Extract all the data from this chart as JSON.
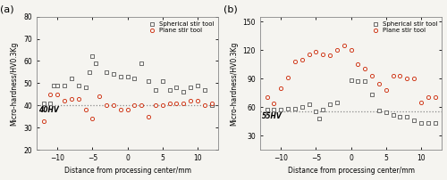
{
  "panel_a": {
    "spherical_x": [
      -12,
      -11,
      -10.5,
      -10,
      -9,
      -8,
      -7,
      -6,
      -5.5,
      -5,
      -4.5,
      -3,
      -2,
      -1,
      0,
      1,
      2,
      3,
      4,
      5,
      6,
      7,
      8,
      9,
      10,
      11,
      12
    ],
    "spherical_y": [
      41,
      41,
      49,
      49,
      49,
      52,
      49,
      48,
      55,
      62,
      59,
      55,
      54,
      53,
      53,
      52,
      59,
      51,
      47,
      51,
      47,
      48,
      46,
      48,
      49,
      47,
      40
    ],
    "plane_x": [
      -12,
      -11,
      -10,
      -9,
      -8,
      -7,
      -6,
      -5,
      -4,
      -3,
      -2,
      -1,
      0,
      1,
      2,
      3,
      4,
      5,
      6,
      7,
      8,
      9,
      10,
      11,
      12
    ],
    "plane_y": [
      33,
      45,
      45,
      42,
      43,
      43,
      38,
      34,
      44,
      40,
      40,
      38,
      38,
      40,
      40,
      35,
      40,
      40,
      41,
      41,
      41,
      42,
      42,
      40,
      41
    ],
    "hline": 40,
    "hline_label": "40HV",
    "ylabel": "Micro-hardness/HV0.3Kg",
    "xlabel": "Distance from processing center/mm",
    "ylim": [
      20,
      80
    ],
    "xlim": [
      -13,
      13
    ],
    "yticks": [
      20,
      30,
      40,
      50,
      60,
      70,
      80
    ],
    "xticks": [
      -10,
      -5,
      0,
      5,
      10
    ],
    "label": "(a)"
  },
  "panel_b": {
    "spherical_x": [
      -12,
      -11,
      -10,
      -9,
      -8,
      -7,
      -6,
      -5,
      -4.5,
      -4,
      -3,
      -2,
      0,
      1,
      2,
      3,
      4,
      5,
      6,
      7,
      8,
      9,
      10,
      11,
      12
    ],
    "spherical_y": [
      57,
      57,
      57,
      58,
      58,
      60,
      63,
      55,
      48,
      57,
      63,
      65,
      88,
      87,
      87,
      73,
      56,
      54,
      52,
      50,
      50,
      46,
      43,
      43,
      43
    ],
    "plane_x": [
      -12,
      -11,
      -10,
      -9,
      -8,
      -7,
      -6,
      -5,
      -4,
      -3,
      -2,
      -1,
      0,
      1,
      2,
      3,
      4,
      5,
      6,
      7,
      8,
      9,
      10,
      11,
      12
    ],
    "plane_y": [
      70,
      64,
      80,
      91,
      108,
      110,
      115,
      118,
      115,
      114,
      120,
      125,
      120,
      105,
      100,
      93,
      84,
      78,
      93,
      93,
      90,
      90,
      65,
      70,
      70
    ],
    "hline": 55,
    "hline_label": "55HV",
    "ylabel": "Micro-hardness/HV0.3Kg",
    "xlabel": "Distance from processing center/mm",
    "ylim": [
      15,
      155
    ],
    "xlim": [
      -13,
      13
    ],
    "yticks": [
      30,
      60,
      90,
      120,
      150
    ],
    "xticks": [
      -10,
      -5,
      0,
      5,
      10
    ],
    "label": "(b)"
  },
  "legend_spherical": "Spherical stir tool",
  "legend_plane": "Plane stir tool",
  "spherical_color": "#555555",
  "plane_color": "#cc2200",
  "marker_spherical": "s",
  "marker_plane": "o",
  "hline_color": "#888888",
  "bg_color": "#f5f4f0"
}
